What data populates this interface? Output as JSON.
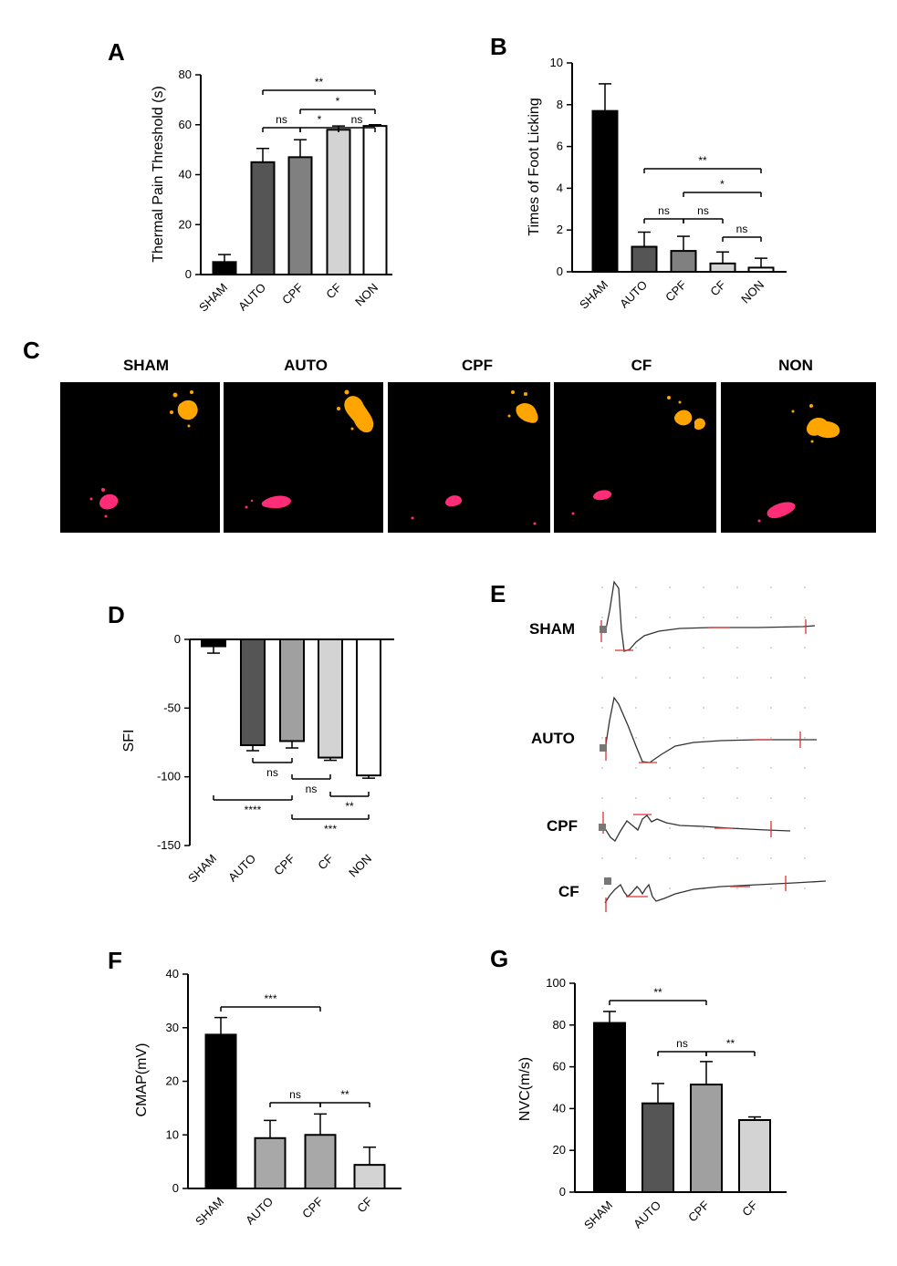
{
  "panel_labels": [
    "A",
    "B",
    "C",
    "D",
    "E",
    "F",
    "G"
  ],
  "chart_data": [
    {
      "id": "A",
      "type": "bar",
      "categories": [
        "SHAM",
        "AUTO",
        "CPF",
        "CF",
        "NON"
      ],
      "values": [
        5,
        45,
        47,
        58,
        59.5
      ],
      "errors": [
        3,
        5.5,
        7,
        1.5,
        0.5
      ],
      "colors": [
        "#000000",
        "#555555",
        "#808080",
        "#d3d3d3",
        "#ffffff"
      ],
      "ylabel": "Thermal Pain Threshold (s)",
      "ylim": [
        0,
        80
      ],
      "yticks": [
        0,
        20,
        40,
        60,
        80
      ],
      "significance": [
        {
          "from": 1,
          "to": 2,
          "label": "ns",
          "level": 0
        },
        {
          "from": 2,
          "to": 3,
          "label": "*",
          "level": 0
        },
        {
          "from": 3,
          "to": 4,
          "label": "ns",
          "level": 0
        },
        {
          "from": 2,
          "to": 4,
          "label": "*",
          "level": 1
        },
        {
          "from": 1,
          "to": 4,
          "label": "**",
          "level": 2
        }
      ]
    },
    {
      "id": "B",
      "type": "bar",
      "categories": [
        "SHAM",
        "AUTO",
        "CPF",
        "CF",
        "NON"
      ],
      "values": [
        7.7,
        1.2,
        1.0,
        0.4,
        0.2
      ],
      "errors": [
        1.3,
        0.7,
        0.7,
        0.55,
        0.45
      ],
      "colors": [
        "#000000",
        "#555555",
        "#808080",
        "#d3d3d3",
        "#ffffff"
      ],
      "ylabel": "Times of Foot Licking",
      "ylim": [
        0,
        10
      ],
      "yticks": [
        0,
        2,
        4,
        6,
        8,
        10
      ],
      "significance": [
        {
          "from": 1,
          "to": 2,
          "label": "ns",
          "level": 0
        },
        {
          "from": 2,
          "to": 3,
          "label": "ns",
          "level": 0
        },
        {
          "from": 3,
          "to": 4,
          "label": "ns",
          "level": -1
        },
        {
          "from": 2,
          "to": 4,
          "label": "*",
          "level": 1
        },
        {
          "from": 1,
          "to": 4,
          "label": "**",
          "level": 2
        }
      ]
    },
    {
      "id": "D",
      "type": "bar",
      "categories": [
        "SHAM",
        "AUTO",
        "CPF",
        "CF",
        "NON"
      ],
      "values": [
        -5,
        -77,
        -74,
        -86,
        -99
      ],
      "errors": [
        5,
        4,
        5,
        2,
        2
      ],
      "colors": [
        "#000000",
        "#555555",
        "#a0a0a0",
        "#d3d3d3",
        "#ffffff"
      ],
      "ylabel": "SFI",
      "ylim": [
        -150,
        0
      ],
      "yticks": [
        0,
        -50,
        -100,
        -150
      ],
      "significance": [
        {
          "from": 1,
          "to": 2,
          "label": "ns",
          "level": 0
        },
        {
          "from": 2,
          "to": 3,
          "label": "ns",
          "level": 1
        },
        {
          "from": 3,
          "to": 4,
          "label": "**",
          "level": 2
        },
        {
          "from": 0,
          "to": 2,
          "label": "****",
          "level": 3
        },
        {
          "from": 2,
          "to": 4,
          "label": "***",
          "level": 4
        }
      ]
    },
    {
      "id": "F",
      "type": "bar",
      "categories": [
        "SHAM",
        "AUTO",
        "CPF",
        "CF"
      ],
      "values": [
        28.7,
        9.4,
        10.0,
        4.4
      ],
      "errors": [
        3.2,
        3.3,
        3.9,
        3.3
      ],
      "colors": [
        "#000000",
        "#a8a8a8",
        "#a8a8a8",
        "#d3d3d3"
      ],
      "ylabel": "CMAP(mV)",
      "ylim": [
        0,
        40
      ],
      "yticks": [
        0,
        10,
        20,
        30,
        40
      ],
      "significance": [
        {
          "from": 0,
          "to": 2,
          "label": "***",
          "level": 2
        },
        {
          "from": 1,
          "to": 2,
          "label": "ns",
          "level": 0
        },
        {
          "from": 2,
          "to": 3,
          "label": "**",
          "level": 0
        }
      ]
    },
    {
      "id": "G",
      "type": "bar",
      "categories": [
        "SHAM",
        "AUTO",
        "CPF",
        "CF"
      ],
      "values": [
        81,
        42.5,
        51.5,
        34.5
      ],
      "errors": [
        5.5,
        9.5,
        11,
        1.5
      ],
      "colors": [
        "#000000",
        "#555555",
        "#a0a0a0",
        "#d3d3d3"
      ],
      "ylabel": "NVC(m/s)",
      "ylim": [
        0,
        100
      ],
      "yticks": [
        0,
        20,
        40,
        60,
        80,
        100
      ],
      "significance": [
        {
          "from": 0,
          "to": 2,
          "label": "**",
          "level": 2
        },
        {
          "from": 1,
          "to": 2,
          "label": "ns",
          "level": 0
        },
        {
          "from": 2,
          "to": 3,
          "label": "**",
          "level": 0
        }
      ]
    }
  ],
  "panel_c": {
    "groups": [
      "SHAM",
      "AUTO",
      "CPF",
      "CF",
      "NON"
    ],
    "colors": {
      "background": "#000000",
      "print_a": "#ffa500",
      "print_b": "#ff2d78"
    }
  },
  "panel_e": {
    "traces": [
      "SHAM",
      "AUTO",
      "CPF",
      "CF"
    ],
    "colors": {
      "trace": "#333333",
      "marker": "#e03030",
      "grid_dot": "#bbbbbb"
    }
  }
}
